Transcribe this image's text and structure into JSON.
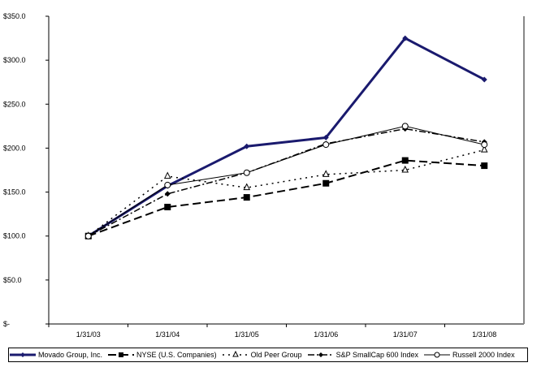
{
  "chart_data": {
    "type": "line",
    "categories": [
      "1/31/03",
      "1/31/04",
      "1/31/05",
      "1/31/06",
      "1/31/07",
      "1/31/08"
    ],
    "ylim": [
      0,
      350
    ],
    "yticks": [
      0,
      50,
      100,
      150,
      200,
      250,
      300,
      350
    ],
    "ytick_labels": [
      "$-",
      "$50.0",
      "$100.0",
      "$150.0",
      "$200.0",
      "$250.0",
      "$300.0",
      "$350.0"
    ],
    "grid": false,
    "legend": "bottom",
    "series": [
      {
        "name": "Movado Group, Inc.",
        "values": [
          100,
          157,
          202,
          212,
          325,
          278
        ],
        "color": "#1a1a6e",
        "marker": "diamond",
        "dash": "solid",
        "width": 3
      },
      {
        "name": "NYSE (U.S. Companies)",
        "values": [
          100,
          133,
          144,
          160,
          186,
          180
        ],
        "color": "#000000",
        "marker": "square",
        "dash": "10,5",
        "width": 2
      },
      {
        "name": "Old Peer Group",
        "values": [
          100,
          168,
          155,
          170,
          175,
          198
        ],
        "color": "#000000",
        "marker": "triangle",
        "dash": "2,5",
        "width": 1.5
      },
      {
        "name": "S&P SmallCap 600 Index",
        "values": [
          100,
          148,
          172,
          205,
          222,
          207
        ],
        "color": "#000000",
        "marker": "diamond",
        "dash": "8,3,2,3",
        "width": 1.5
      },
      {
        "name": "Russell 2000 Index",
        "values": [
          100,
          158,
          172,
          204,
          225,
          204
        ],
        "color": "#000000",
        "marker": "circle",
        "dash": "solid",
        "width": 1
      }
    ]
  }
}
